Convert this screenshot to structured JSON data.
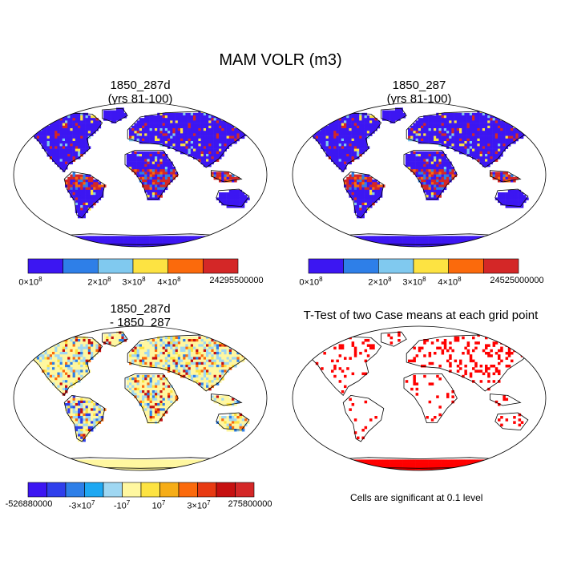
{
  "title": "MAM VOLR (m3)",
  "panels": {
    "top_left": {
      "title": "1850_287d\n(yrs 81-100)"
    },
    "top_right": {
      "title": "1850_287\n(yrs 81-100)"
    },
    "bottom_left": {
      "title": "1850_287d\n- 1850_287"
    },
    "bottom_right": {
      "title": "T-Test of two Case means at each grid point"
    }
  },
  "colorbars": {
    "top_left": {
      "colors": [
        "#3c16f2",
        "#2e7fe8",
        "#80c9ef",
        "#fde342",
        "#fb6a0c",
        "#d42727"
      ],
      "labels": [
        {
          "base": "0×10",
          "exp": "8"
        },
        {
          "base": "2×10",
          "exp": "8"
        },
        {
          "base": "3×10",
          "exp": "8"
        },
        {
          "base": "4×10",
          "exp": "8"
        },
        {
          "base": "24295500000",
          "exp": ""
        }
      ]
    },
    "top_right": {
      "colors": [
        "#3c16f2",
        "#2e7fe8",
        "#80c9ef",
        "#fde342",
        "#fb6a0c",
        "#d42727"
      ],
      "labels": [
        {
          "base": "0×10",
          "exp": "8"
        },
        {
          "base": "2×10",
          "exp": "8"
        },
        {
          "base": "3×10",
          "exp": "8"
        },
        {
          "base": "4×10",
          "exp": "8"
        },
        {
          "base": "24525000000",
          "exp": ""
        }
      ]
    },
    "bottom_left": {
      "colors": [
        "#3c16f2",
        "#2f3fec",
        "#2e7fe8",
        "#1ea8f2",
        "#9fd7f2",
        "#fff7a0",
        "#fde342",
        "#f6ad17",
        "#fb6a0c",
        "#e83a12",
        "#c61010",
        "#d42727"
      ],
      "labels": [
        {
          "base": "-526880000",
          "exp": ""
        },
        {
          "base": "-3×10",
          "exp": "7"
        },
        {
          "base": "-10",
          "exp": "7"
        },
        {
          "base": "10",
          "exp": "7"
        },
        {
          "base": "3×10",
          "exp": "7"
        },
        {
          "base": "275800000",
          "exp": ""
        }
      ]
    }
  },
  "significance_note": "Cells are significant at 0.1 level",
  "palette": {
    "ocean": "#ffffff",
    "land_low": "#3c16f2",
    "land_high": "#d42727",
    "diff_land": "#fff7a0",
    "signif": "#ff0000",
    "coast": "#000000"
  }
}
